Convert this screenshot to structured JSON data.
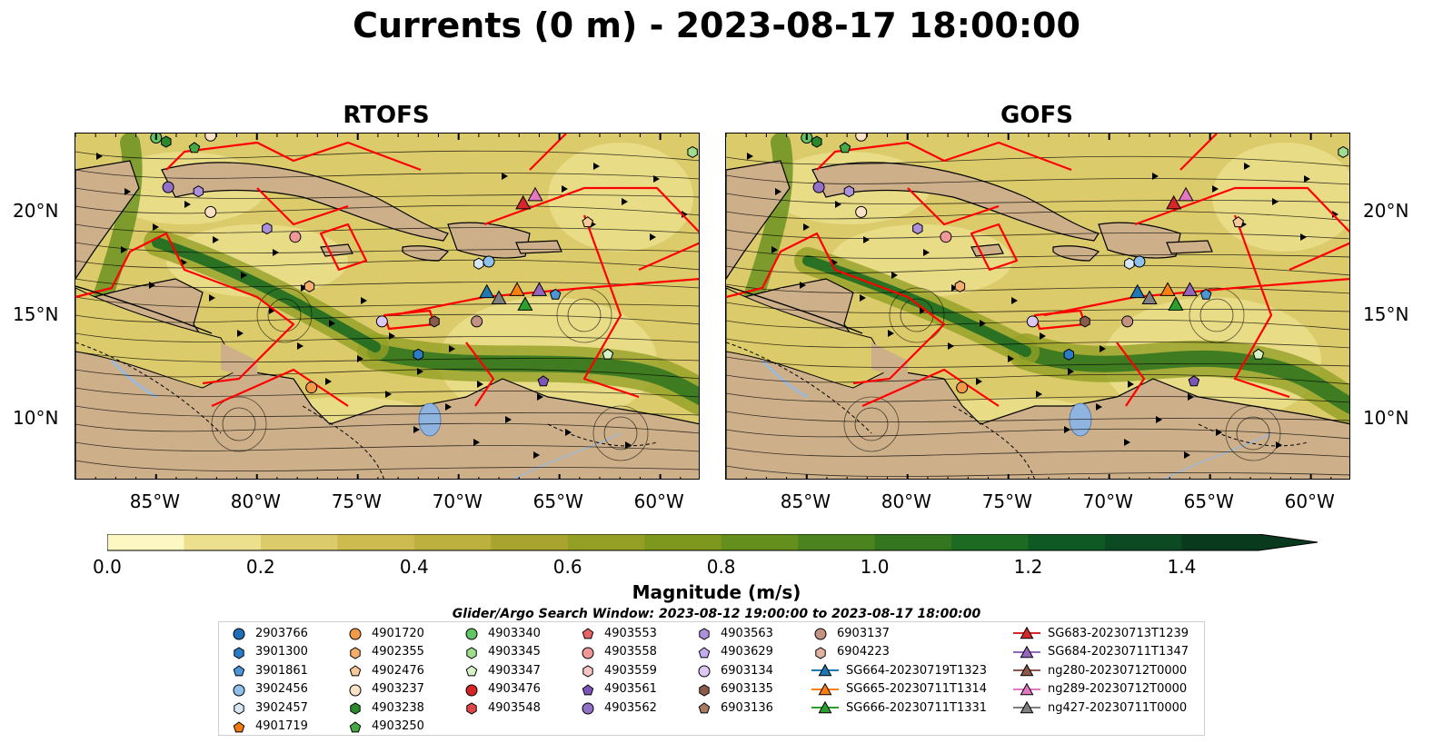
{
  "title": "Currents (0 m) - 2023-08-17 18:00:00",
  "panels": [
    {
      "title": "RTOFS"
    },
    {
      "title": "GOFS"
    }
  ],
  "axes": {
    "lon_labels": [
      "85°W",
      "80°W",
      "75°W",
      "70°W",
      "65°W",
      "60°W"
    ],
    "lat_labels": [
      "20°N",
      "15°N",
      "10°N"
    ],
    "lon_range": [
      -89,
      -58
    ],
    "lat_range": [
      7,
      23.8
    ]
  },
  "colorbar": {
    "label": "Magnitude (m/s)",
    "ticks": [
      "0.0",
      "0.2",
      "0.4",
      "0.6",
      "0.8",
      "1.0",
      "1.2",
      "1.4"
    ],
    "range": [
      0,
      1.5
    ],
    "colors": [
      "#fdf7c4",
      "#ece08f",
      "#dccb6a",
      "#cdbb4f",
      "#bcb03f",
      "#a8a42f",
      "#93a025",
      "#7e981e",
      "#658f1d",
      "#4b831f",
      "#34761f",
      "#1d6a22",
      "#0f5a24",
      "#0b4a22",
      "#0a3a1d"
    ],
    "extend": "max"
  },
  "legend": {
    "title": "Glider/Argo Search Window: 2023-08-12 19:00:00 to 2023-08-17 18:00:00",
    "items": [
      {
        "label": "2903766",
        "marker": "circle",
        "color": "#1f6fb4"
      },
      {
        "label": "3901300",
        "marker": "hexagon",
        "color": "#2b7cc7"
      },
      {
        "label": "3901861",
        "marker": "pentagon",
        "color": "#4a96d8"
      },
      {
        "label": "3902456",
        "marker": "circle",
        "color": "#8ec0ea"
      },
      {
        "label": "3902457",
        "marker": "hexagon",
        "color": "#d6e8f7"
      },
      {
        "label": "4901719",
        "marker": "pentagon",
        "color": "#f07a12"
      },
      {
        "label": "4901720",
        "marker": "circle",
        "color": "#f39a4a"
      },
      {
        "label": "4902355",
        "marker": "hexagon",
        "color": "#f5ae6c"
      },
      {
        "label": "4902476",
        "marker": "pentagon",
        "color": "#f7c898"
      },
      {
        "label": "4903237",
        "marker": "circle",
        "color": "#fce2c4"
      },
      {
        "label": "4903238",
        "marker": "hexagon",
        "color": "#2a8a2a"
      },
      {
        "label": "4903250",
        "marker": "pentagon",
        "color": "#45a845"
      },
      {
        "label": "4903340",
        "marker": "circle",
        "color": "#62c462"
      },
      {
        "label": "4903345",
        "marker": "hexagon",
        "color": "#9fde8f"
      },
      {
        "label": "4903347",
        "marker": "pentagon",
        "color": "#d7f4c9"
      },
      {
        "label": "4903476",
        "marker": "circle",
        "color": "#d42424"
      },
      {
        "label": "4903548",
        "marker": "hexagon",
        "color": "#de4646"
      },
      {
        "label": "4903553",
        "marker": "pentagon",
        "color": "#e66464"
      },
      {
        "label": "4903558",
        "marker": "circle",
        "color": "#f09898"
      },
      {
        "label": "4903559",
        "marker": "hexagon",
        "color": "#f8c4c4"
      },
      {
        "label": "4903561",
        "marker": "pentagon",
        "color": "#7c55b8"
      },
      {
        "label": "4903562",
        "marker": "circle",
        "color": "#9370c8"
      },
      {
        "label": "4903563",
        "marker": "hexagon",
        "color": "#ad90dc"
      },
      {
        "label": "4903629",
        "marker": "pentagon",
        "color": "#c4adec"
      },
      {
        "label": "6903134",
        "marker": "circle",
        "color": "#dcc8f4"
      },
      {
        "label": "6903135",
        "marker": "hexagon",
        "color": "#8a5a4a"
      },
      {
        "label": "6903136",
        "marker": "pentagon",
        "color": "#a87a62"
      },
      {
        "label": "6903137",
        "marker": "circle",
        "color": "#c49282"
      },
      {
        "label": "6904223",
        "marker": "hexagon",
        "color": "#e0b0a0"
      },
      {
        "label": "SG664-20230719T1323",
        "marker": "triangle",
        "color": "#1f77b4"
      },
      {
        "label": "SG665-20230711T1314",
        "marker": "triangle",
        "color": "#ff7f0e"
      },
      {
        "label": "SG666-20230711T1331",
        "marker": "triangle",
        "color": "#2ca02c"
      },
      {
        "label": "SG683-20230713T1239",
        "marker": "triangle",
        "color": "#d62728"
      },
      {
        "label": "SG684-20230711T1347",
        "marker": "triangle",
        "color": "#9467bd"
      },
      {
        "label": "ng280-20230712T0000",
        "marker": "triangle",
        "color": "#8c564b"
      },
      {
        "label": "ng289-20230712T0000",
        "marker": "triangle",
        "color": "#e377c2"
      },
      {
        "label": "ng427-20230711T0000",
        "marker": "triangle",
        "color": "#7f7f7f"
      }
    ]
  }
}
